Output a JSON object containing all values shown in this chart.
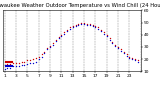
{
  "title": "Milwaukee Weather Outdoor Temperature vs Wind Chill (24 Hours)",
  "title_fontsize": 3.8,
  "background_color": "#ffffff",
  "plot_bg_color": "#ffffff",
  "grid_color": "#aaaaaa",
  "ylim": [
    10,
    60
  ],
  "yticks": [
    10,
    20,
    30,
    40,
    50,
    60
  ],
  "ytick_labels": [
    "10",
    "20",
    "30",
    "40",
    "50",
    "60"
  ],
  "temp_data": {
    "x": [
      0,
      1,
      2,
      3,
      4,
      5,
      6,
      7,
      8,
      9,
      10,
      11,
      12,
      13,
      14,
      15,
      16,
      17,
      18,
      19,
      20,
      21,
      22,
      23,
      24,
      25,
      26,
      27,
      28,
      29,
      30,
      31,
      32,
      33,
      34,
      35,
      36,
      37,
      38,
      39,
      40,
      41,
      42,
      43,
      44,
      45,
      46,
      47
    ],
    "y": [
      15,
      16,
      16,
      17,
      17,
      17,
      18,
      18,
      19,
      19,
      20,
      21,
      22,
      24,
      26,
      29,
      31,
      33,
      36,
      38,
      40,
      42,
      44,
      46,
      47,
      48,
      49,
      50,
      50,
      49,
      49,
      48,
      47,
      46,
      44,
      42,
      40,
      37,
      34,
      32,
      30,
      28,
      26,
      24,
      22,
      21,
      20,
      19
    ],
    "color": "#cc0000",
    "marker": ".",
    "size": 4
  },
  "windchill_data": {
    "x": [
      0,
      1,
      2,
      3,
      4,
      5,
      6,
      7,
      8,
      9,
      10,
      11,
      12,
      13,
      14,
      15,
      16,
      17,
      18,
      19,
      20,
      21,
      22,
      23,
      24,
      25,
      26,
      27,
      28,
      29,
      30,
      31,
      32,
      33,
      34,
      35,
      36,
      37,
      38,
      39,
      40,
      41,
      42,
      43,
      44,
      45,
      46,
      47
    ],
    "y": [
      12,
      13,
      13,
      14,
      14,
      14,
      15,
      15,
      16,
      17,
      17,
      18,
      20,
      22,
      25,
      28,
      30,
      32,
      35,
      37,
      39,
      41,
      43,
      45,
      46,
      47,
      48,
      49,
      49,
      48,
      48,
      47,
      46,
      45,
      43,
      41,
      39,
      36,
      33,
      31,
      29,
      27,
      25,
      23,
      21,
      20,
      19,
      18
    ],
    "color": "#0000cc",
    "marker": ".",
    "size": 4
  },
  "legend": {
    "temp_label": "",
    "windchill_label": "",
    "temp_color": "#cc0000",
    "windchill_color": "#0000cc",
    "fontsize": 3.0
  },
  "xtick_positions": [
    0,
    4,
    8,
    12,
    16,
    20,
    24,
    28,
    32,
    36,
    40,
    44,
    48
  ],
  "xtick_labels": [
    "1",
    "3",
    "5",
    "7",
    "9",
    "11",
    "13",
    "15",
    "17",
    "19",
    "21",
    "23",
    ""
  ],
  "xtick_fontsize": 3.2,
  "ytick_fontsize": 3.2,
  "vgrid_positions": [
    0,
    4,
    8,
    12,
    16,
    20,
    24,
    28,
    32,
    36,
    40,
    44,
    48
  ],
  "vgrid_style": "--",
  "vgrid_color": "#888888",
  "vgrid_linewidth": 0.35
}
